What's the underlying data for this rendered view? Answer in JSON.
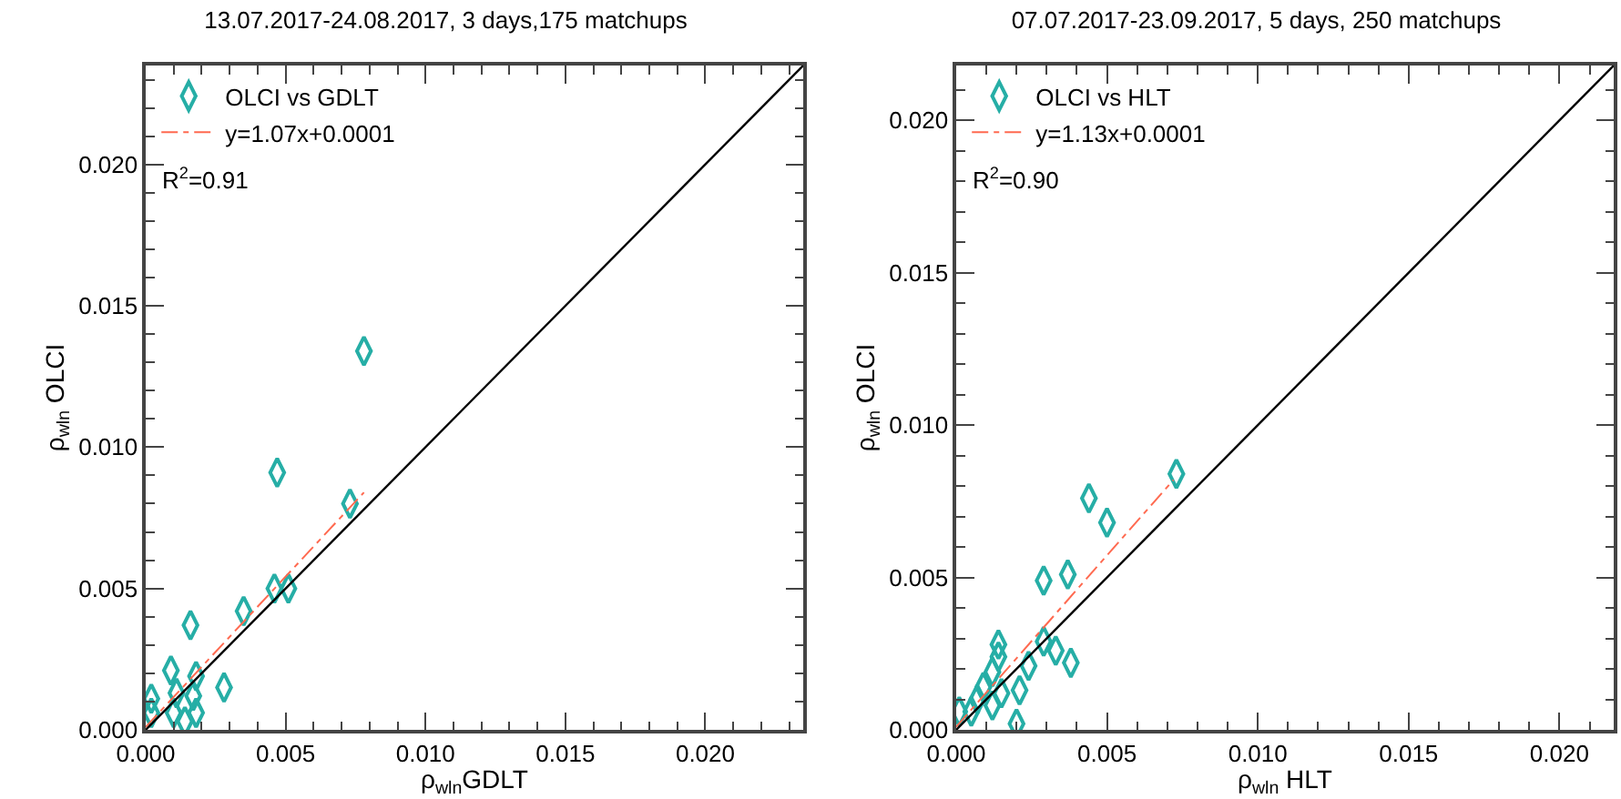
{
  "chart_data": [
    {
      "type": "scatter",
      "title": "13.07.2017-24.08.2017, 3 days,175 matchups",
      "xlabel": "ρ$_{wln}$GDLT",
      "ylabel": "ρ$_{wln}$ OLCI",
      "xlim": [
        0,
        0.0235
      ],
      "ylim": [
        0,
        0.0235
      ],
      "xticks": [
        {
          "value": 0,
          "label": "0.000"
        },
        {
          "value": 0.005,
          "label": "0.005"
        },
        {
          "value": 0.01,
          "label": "0.010"
        },
        {
          "value": 0.015,
          "label": "0.015"
        },
        {
          "value": 0.02,
          "label": "0.020"
        }
      ],
      "yticks": [
        {
          "value": 0,
          "label": "0.000"
        },
        {
          "value": 0.005,
          "label": "0.005"
        },
        {
          "value": 0.01,
          "label": "0.010"
        },
        {
          "value": 0.015,
          "label": "0.015"
        },
        {
          "value": 0.02,
          "label": "0.020"
        }
      ],
      "grid": false,
      "legend": "top left",
      "annotations": [
        "R$^{2}$=0.91"
      ],
      "series": [
        {
          "name": "OLCI vs GDLT",
          "color": "#26aea6",
          "marker": "diamond",
          "x": [
            0.0078,
            0.0047,
            0.0073,
            0.0046,
            0.0051,
            0.0035,
            0.0016,
            0.0009,
            0.0018,
            0.0028,
            0.0017,
            0.0011,
            0.0018,
            0.001,
            0.0014,
            0.0002,
            0.0002
          ],
          "values": [
            0.0134,
            0.0091,
            0.008,
            0.005,
            0.005,
            0.0042,
            0.0037,
            0.0021,
            0.0019,
            0.0015,
            0.0012,
            0.0013,
            0.0006,
            0.0006,
            0.0003,
            0.0011,
            0.0006
          ]
        },
        {
          "name": "y=1.07x+0.0001",
          "type": "line",
          "line_style": "dashed",
          "color": "#ff6a50",
          "x": [
            0,
            0.0078
          ],
          "values": [
            0.0001,
            0.0084
          ]
        },
        {
          "type": "line",
          "line_style": "solid",
          "color": "#000000",
          "x": [
            0,
            0.0235
          ],
          "values": [
            0,
            0.0235
          ]
        }
      ]
    },
    {
      "type": "scatter",
      "title": "07.07.2017-23.09.2017, 5 days, 250 matchups",
      "xlabel": "ρ$_{wln}$ HLT",
      "ylabel": "ρ$_{wln}$ OLCI",
      "xlim": [
        0,
        0.0218
      ],
      "ylim": [
        0,
        0.0218
      ],
      "xticks": [
        {
          "value": 0,
          "label": "0.000"
        },
        {
          "value": 0.005,
          "label": "0.005"
        },
        {
          "value": 0.01,
          "label": "0.010"
        },
        {
          "value": 0.015,
          "label": "0.015"
        },
        {
          "value": 0.02,
          "label": "0.020"
        }
      ],
      "yticks": [
        {
          "value": 0,
          "label": "0.000"
        },
        {
          "value": 0.005,
          "label": "0.005"
        },
        {
          "value": 0.01,
          "label": "0.010"
        },
        {
          "value": 0.015,
          "label": "0.015"
        },
        {
          "value": 0.02,
          "label": "0.020"
        }
      ],
      "grid": false,
      "legend": "top left",
      "annotations": [
        "R$^{2}$=0.90"
      ],
      "series": [
        {
          "name": "OLCI vs HLT",
          "color": "#26aea6",
          "marker": "diamond",
          "x": [
            0.0073,
            0.0044,
            0.005,
            0.0029,
            0.0037,
            0.0029,
            0.0033,
            0.0038,
            0.0024,
            0.0021,
            0.0014,
            0.0014,
            0.0012,
            0.0009,
            0.0015,
            0.0012,
            0.0007,
            0.002,
            0.0005,
            0.0001
          ],
          "values": [
            0.0084,
            0.0076,
            0.0068,
            0.0049,
            0.0051,
            0.0029,
            0.0026,
            0.0022,
            0.0021,
            0.0013,
            0.0028,
            0.0024,
            0.0019,
            0.0014,
            0.0012,
            0.0008,
            0.001,
            0.0002,
            0.0006,
            0.0006
          ]
        },
        {
          "name": "y=1.13x+0.0001",
          "type": "line",
          "line_style": "dashed",
          "color": "#ff6a50",
          "x": [
            0,
            0.0072
          ],
          "values": [
            0.0001,
            0.0082
          ]
        },
        {
          "type": "line",
          "line_style": "solid",
          "color": "#000000",
          "x": [
            0,
            0.0218
          ],
          "values": [
            0,
            0.0218
          ]
        }
      ]
    }
  ]
}
